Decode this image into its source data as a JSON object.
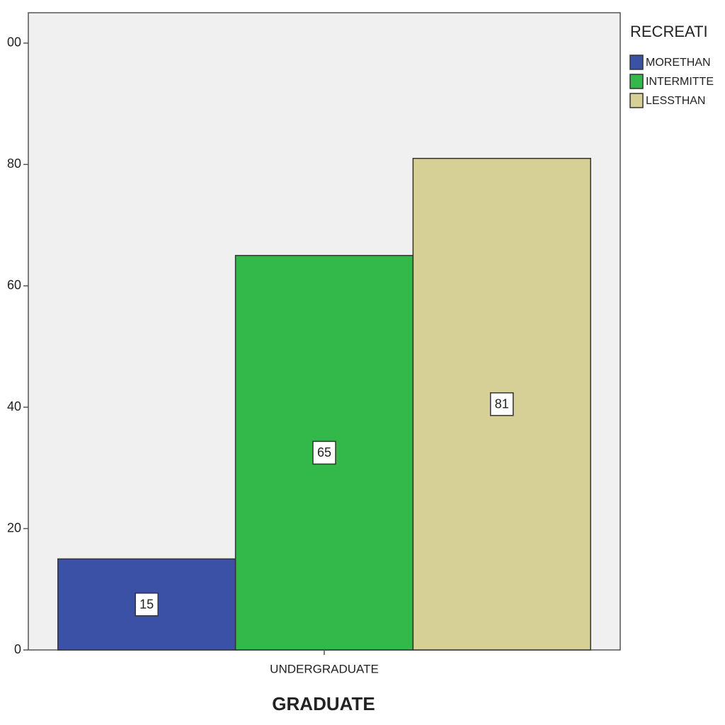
{
  "chart_data": {
    "type": "bar",
    "categories": [
      "UNDERGRADUATE"
    ],
    "xlabel": "GRADUATE",
    "legend_title": "RECREATI",
    "series": [
      {
        "name": "MORETHAN",
        "color": "#3b51a6",
        "values": [
          15
        ]
      },
      {
        "name": "INTERMITTE",
        "color": "#33b84a",
        "values": [
          65
        ]
      },
      {
        "name": "LESSTHAN",
        "color": "#d6d097",
        "values": [
          81
        ]
      }
    ],
    "ylim": [
      0,
      105
    ],
    "yticks": [
      0,
      20,
      40,
      60,
      80,
      {
        "value": 100,
        "label": "00"
      }
    ],
    "legend": "right"
  }
}
